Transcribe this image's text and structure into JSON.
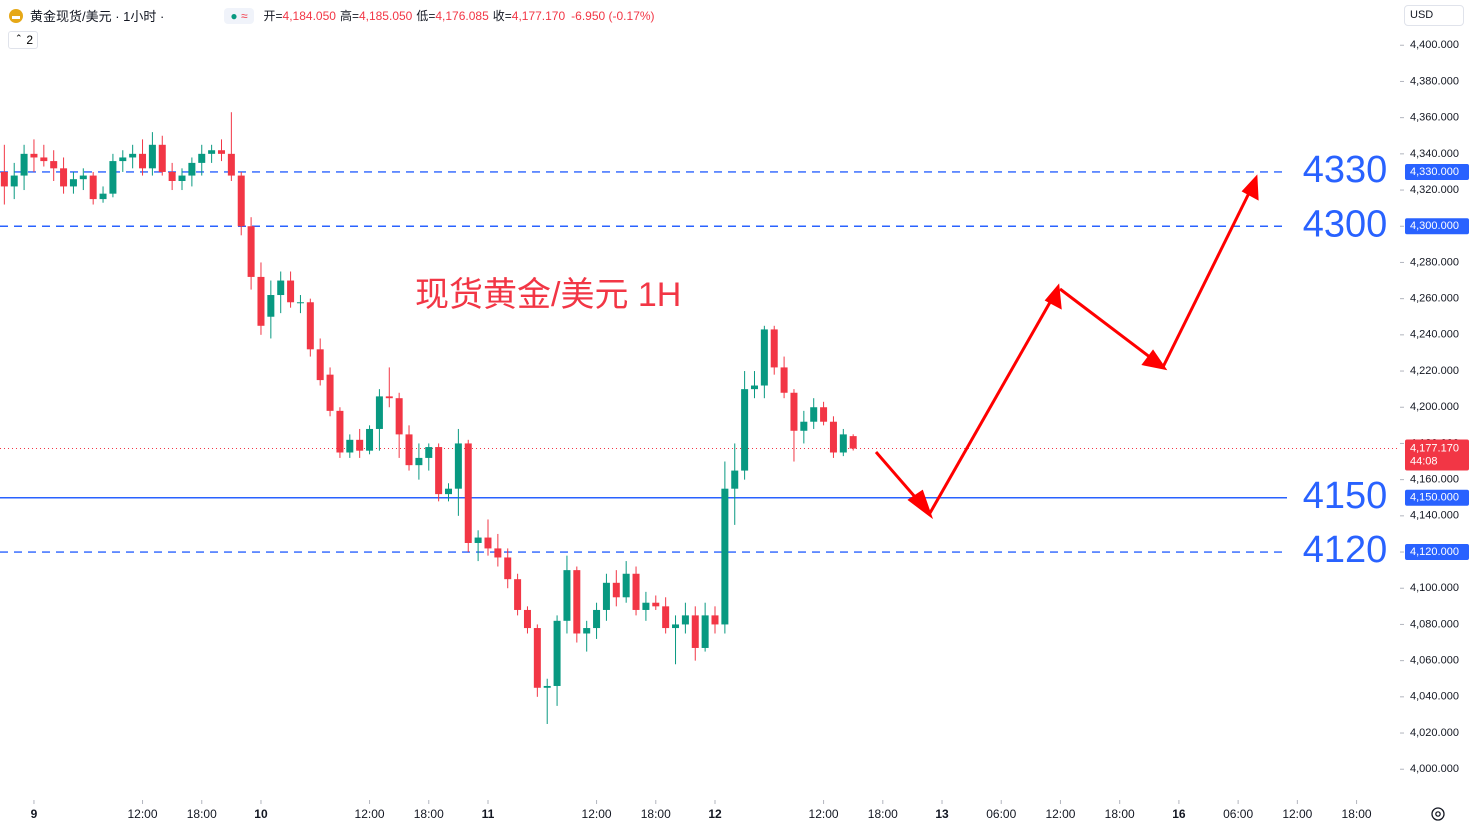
{
  "header": {
    "symbol": "黄金现货/美元 · 1小时 ·",
    "badge": "2",
    "currency": "USD",
    "ohlc": [
      {
        "label": "开=",
        "value": "4,184.050"
      },
      {
        "label": "高=",
        "value": "4,185.050"
      },
      {
        "label": "低=",
        "value": "4,176.085"
      },
      {
        "label": "收=",
        "value": "4,177.170"
      }
    ],
    "change": "-6.950 (-0.17%)"
  },
  "chart_data": {
    "type": "candlestick",
    "title": "现货黄金/美元 1H",
    "colors": {
      "up": "#089981",
      "down": "#f23645",
      "level": "#2962ff",
      "arrow": "#ff0000"
    },
    "x": [
      -3,
      -2,
      -1,
      0,
      1,
      2,
      3,
      4,
      5,
      6,
      7,
      8,
      9,
      10,
      11,
      12,
      13,
      14,
      15,
      16,
      17,
      18,
      19,
      20,
      21,
      22,
      23,
      24,
      25,
      26,
      27,
      28,
      29,
      30,
      31,
      32,
      33,
      34,
      35,
      36,
      37,
      38,
      39,
      40,
      41,
      42,
      43,
      44,
      45,
      46,
      47,
      48,
      49,
      50,
      51,
      52,
      53,
      54,
      55,
      56,
      57,
      58,
      59,
      60,
      61,
      62,
      63,
      64,
      65,
      66,
      67,
      68,
      69,
      70,
      71,
      72,
      73,
      74,
      75,
      76,
      77,
      78,
      79,
      80,
      81,
      82,
      83
    ],
    "open": [
      4330,
      4322,
      4328,
      4340,
      4338,
      4336,
      4332,
      4322,
      4326,
      4328,
      4315,
      4318,
      4336,
      4338,
      4340,
      4332,
      4345,
      4330,
      4325,
      4328,
      4335,
      4340,
      4342,
      4340,
      4328,
      4300,
      4272,
      4250,
      4262,
      4270,
      4258,
      4258,
      4232,
      4218,
      4198,
      4175,
      4182,
      4176,
      4188,
      4206,
      4205,
      4185,
      4168,
      4172,
      4178,
      4152,
      4155,
      4180,
      4125,
      4128,
      4122,
      4117,
      4105,
      4088,
      4078,
      4045,
      4046,
      4082,
      4110,
      4075,
      4078,
      4088,
      4103,
      4095,
      4108,
      4088,
      4092,
      4090,
      4078,
      4080,
      4085,
      4067,
      4085,
      4080,
      4155,
      4165,
      4210,
      4212,
      4243,
      4222,
      4208,
      4187,
      4192,
      4200,
      4192,
      4175,
      4184.05
    ],
    "high": [
      4345,
      4335,
      4345,
      4348,
      4345,
      4342,
      4338,
      4330,
      4332,
      4330,
      4322,
      4340,
      4342,
      4345,
      4348,
      4352,
      4350,
      4335,
      4332,
      4338,
      4345,
      4345,
      4348,
      4363,
      4330,
      4305,
      4280,
      4270,
      4275,
      4275,
      4262,
      4260,
      4238,
      4222,
      4200,
      4185,
      4188,
      4190,
      4210,
      4222,
      4208,
      4190,
      4180,
      4180,
      4180,
      4158,
      4188,
      4182,
      4132,
      4138,
      4130,
      4122,
      4108,
      4090,
      4080,
      4050,
      4085,
      4118,
      4112,
      4082,
      4092,
      4108,
      4110,
      4115,
      4112,
      4098,
      4096,
      4095,
      4085,
      4092,
      4090,
      4092,
      4090,
      4170,
      4180,
      4220,
      4220,
      4245,
      4245,
      4228,
      4210,
      4198,
      4205,
      4203,
      4195,
      4188,
      4185.05
    ],
    "low": [
      4312,
      4315,
      4320,
      4330,
      4333,
      4325,
      4318,
      4318,
      4320,
      4312,
      4313,
      4316,
      4330,
      4332,
      4328,
      4328,
      4328,
      4320,
      4320,
      4322,
      4328,
      4335,
      4336,
      4325,
      4295,
      4265,
      4240,
      4238,
      4252,
      4255,
      4252,
      4228,
      4212,
      4195,
      4172,
      4172,
      4172,
      4174,
      4176,
      4200,
      4172,
      4165,
      4160,
      4165,
      4148,
      4148,
      4140,
      4120,
      4115,
      4118,
      4112,
      4100,
      4085,
      4075,
      4040,
      4025,
      4035,
      4075,
      4070,
      4065,
      4072,
      4082,
      4090,
      4092,
      4085,
      4082,
      4088,
      4075,
      4058,
      4075,
      4060,
      4065,
      4075,
      4075,
      4135,
      4160,
      4205,
      4205,
      4218,
      4205,
      4170,
      4180,
      4188,
      4190,
      4172,
      4173,
      4176.085
    ],
    "close": [
      4322,
      4328,
      4340,
      4338,
      4336,
      4332,
      4322,
      4326,
      4328,
      4315,
      4318,
      4336,
      4338,
      4340,
      4332,
      4345,
      4330,
      4325,
      4328,
      4335,
      4340,
      4342,
      4340,
      4328,
      4300,
      4272,
      4245,
      4262,
      4270,
      4258,
      4258,
      4232,
      4215,
      4198,
      4175,
      4182,
      4176,
      4188,
      4206,
      4205,
      4185,
      4168,
      4172,
      4178,
      4152,
      4155,
      4180,
      4125,
      4128,
      4122,
      4117,
      4105,
      4088,
      4078,
      4045,
      4046,
      4082,
      4110,
      4075,
      4078,
      4088,
      4103,
      4095,
      4108,
      4088,
      4092,
      4090,
      4078,
      4080,
      4085,
      4067,
      4085,
      4080,
      4155,
      4165,
      4210,
      4212,
      4243,
      4222,
      4208,
      4187,
      4192,
      4200,
      4192,
      4175,
      4185,
      4177.17
    ],
    "xlim": [
      -3.44,
      138.4
    ],
    "ylim": [
      3983,
      4425
    ],
    "xticks": [
      {
        "value": 0,
        "label": "9"
      },
      {
        "value": 11,
        "label": "12:00"
      },
      {
        "value": 17,
        "label": "18:00"
      },
      {
        "value": 23,
        "label": "10"
      },
      {
        "value": 34,
        "label": "12:00"
      },
      {
        "value": 40,
        "label": "18:00"
      },
      {
        "value": 46,
        "label": "11"
      },
      {
        "value": 57,
        "label": "12:00"
      },
      {
        "value": 63,
        "label": "18:00"
      },
      {
        "value": 69,
        "label": "12"
      },
      {
        "value": 80,
        "label": "12:00"
      },
      {
        "value": 86,
        "label": "18:00"
      },
      {
        "value": 92,
        "label": "13"
      },
      {
        "value": 98,
        "label": "06:00"
      },
      {
        "value": 104,
        "label": "12:00"
      },
      {
        "value": 110,
        "label": "18:00"
      },
      {
        "value": 116,
        "label": "16"
      },
      {
        "value": 122,
        "label": "06:00"
      },
      {
        "value": 128,
        "label": "12:00"
      },
      {
        "value": 134,
        "label": "18:00"
      }
    ],
    "yticks": [
      {
        "value": 4000,
        "label": "4,000.000"
      },
      {
        "value": 4020,
        "label": "4,020.000"
      },
      {
        "value": 4040,
        "label": "4,040.000"
      },
      {
        "value": 4060,
        "label": "4,060.000"
      },
      {
        "value": 4080,
        "label": "4,080.000"
      },
      {
        "value": 4100,
        "label": "4,100.000"
      },
      {
        "value": 4120,
        "label": "4,120.000"
      },
      {
        "value": 4140,
        "label": "4,140.000"
      },
      {
        "value": 4160,
        "label": "4,160.000"
      },
      {
        "value": 4180,
        "label": "4,180.000"
      },
      {
        "value": 4200,
        "label": "4,200.000"
      },
      {
        "value": 4220,
        "label": "4,220.000"
      },
      {
        "value": 4240,
        "label": "4,240.000"
      },
      {
        "value": 4260,
        "label": "4,260.000"
      },
      {
        "value": 4280,
        "label": "4,280.000"
      },
      {
        "value": 4300,
        "label": "4,300.000"
      },
      {
        "value": 4320,
        "label": "4,320.000"
      },
      {
        "value": 4340,
        "label": "4,340.000"
      },
      {
        "value": 4360,
        "label": "4,360.000"
      },
      {
        "value": 4380,
        "label": "4,380.000"
      },
      {
        "value": 4400,
        "label": "4,400.000"
      }
    ],
    "levels": [
      {
        "value": 4330,
        "label": "4,330.000",
        "style": "dashed"
      },
      {
        "value": 4300,
        "label": "4,300.000",
        "style": "dashed"
      },
      {
        "value": 4150,
        "label": "4,150.000",
        "style": "solid"
      },
      {
        "value": 4120,
        "label": "4,120.000",
        "style": "dashed"
      }
    ],
    "last_price": {
      "value": 4177.17,
      "label": "4,177.170",
      "countdown": "44:08"
    }
  }
}
